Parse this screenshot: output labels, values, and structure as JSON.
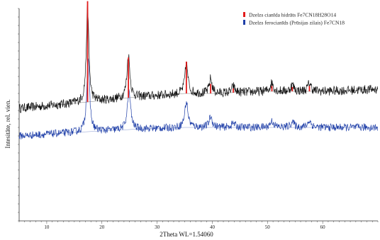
{
  "chart_data": {
    "type": "line",
    "xlabel": "2Theta WL=1.54060",
    "ylabel": "Intesitāte, rel. vien.",
    "xlim": [
      5,
      70
    ],
    "x_ticks": [
      10,
      20,
      30,
      40,
      50,
      60
    ],
    "ylim": [
      0,
      100
    ],
    "grid": false,
    "legend_position": "top-right",
    "legend": [
      {
        "label": "Dzelzs cianīda hidrāts Fe7CN18H28O14",
        "color": "#e21b1b"
      },
      {
        "label": "Dzelzs ferocianīds (Prūsijas zilais) Fe7CN18",
        "color": "#1f3fa8"
      }
    ],
    "series": [
      {
        "color": "#111111",
        "baseline": 53,
        "noise": 2.2,
        "points": [
          [
            5,
            53
          ],
          [
            17.5,
            56
          ],
          [
            25,
            58
          ],
          [
            35,
            60
          ],
          [
            40,
            60
          ],
          [
            50,
            61
          ],
          [
            60,
            61
          ],
          [
            70,
            62
          ]
        ],
        "peaks": [
          {
            "x": 17.4,
            "height": 45,
            "width": 0.55
          },
          {
            "x": 24.8,
            "height": 20,
            "width": 0.65
          },
          {
            "x": 35.3,
            "height": 14,
            "width": 0.65
          },
          {
            "x": 39.7,
            "height": 7,
            "width": 0.6
          },
          {
            "x": 43.8,
            "height": 3,
            "width": 0.6
          },
          {
            "x": 50.8,
            "height": 4,
            "width": 0.7
          },
          {
            "x": 54.5,
            "height": 3,
            "width": 0.7
          },
          {
            "x": 57.6,
            "height": 4,
            "width": 0.7
          }
        ]
      },
      {
        "color": "#1f3fa8",
        "baseline": 40,
        "noise": 1.8,
        "points": [
          [
            5,
            40
          ],
          [
            17.5,
            42
          ],
          [
            25,
            43
          ],
          [
            35,
            44
          ],
          [
            40,
            44
          ],
          [
            50,
            44
          ],
          [
            60,
            44
          ],
          [
            70,
            44
          ]
        ],
        "peaks": [
          {
            "x": 17.5,
            "height": 35,
            "width": 0.6
          },
          {
            "x": 24.9,
            "height": 18,
            "width": 0.7
          },
          {
            "x": 35.3,
            "height": 12,
            "width": 0.7
          },
          {
            "x": 39.7,
            "height": 5,
            "width": 0.7
          },
          {
            "x": 43.8,
            "height": 2,
            "width": 0.8
          },
          {
            "x": 50.8,
            "height": 3,
            "width": 0.8
          },
          {
            "x": 54.5,
            "height": 2.5,
            "width": 0.8
          },
          {
            "x": 57.6,
            "height": 3,
            "width": 0.8
          }
        ]
      }
    ],
    "reference_lines": [
      {
        "x": 17.4,
        "height": 95,
        "color": "#e21b1b"
      },
      {
        "x": 24.8,
        "height": 38,
        "color": "#e21b1b"
      },
      {
        "x": 35.3,
        "height": 30,
        "color": "#e21b1b"
      },
      {
        "x": 39.7,
        "height": 9,
        "color": "#e21b1b"
      },
      {
        "x": 43.8,
        "height": 4,
        "color": "#e21b1b"
      },
      {
        "x": 50.8,
        "height": 5,
        "color": "#e21b1b"
      },
      {
        "x": 54.5,
        "height": 4,
        "color": "#e21b1b"
      },
      {
        "x": 57.6,
        "height": 5,
        "color": "#e21b1b"
      }
    ]
  }
}
